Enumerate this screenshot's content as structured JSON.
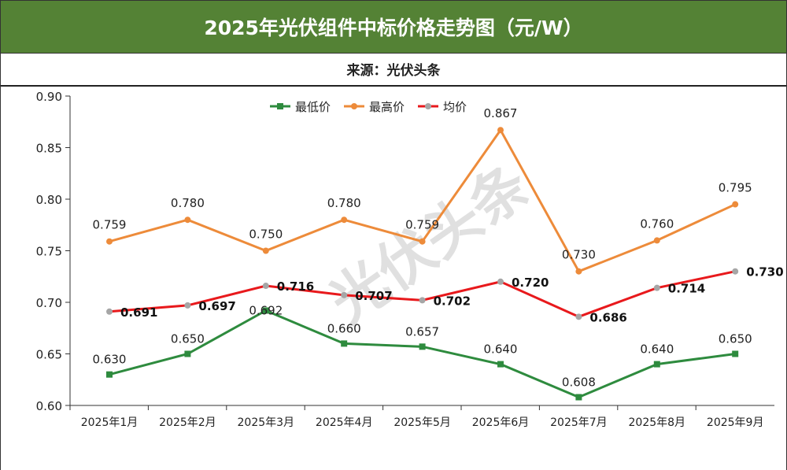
{
  "header": {
    "title": "2025年光伏组件中标价格走势图（元/W）",
    "source": "来源：光伏头条"
  },
  "watermark": "光伏头条",
  "chart_data": {
    "type": "line",
    "title": "2025年光伏组件中标价格走势图（元/W）",
    "categories": [
      "2025年1月",
      "2025年2月",
      "2025年3月",
      "2025年4月",
      "2025年5月",
      "2025年6月",
      "2025年7月",
      "2025年8月",
      "2025年9月"
    ],
    "ylim": [
      0.6,
      0.9
    ],
    "yticks": [
      "0.60",
      "0.65",
      "0.70",
      "0.75",
      "0.80",
      "0.85",
      "0.90"
    ],
    "legend_position": "top-center",
    "series": [
      {
        "name": "最低价",
        "color": "#2e8b3e",
        "marker": "square",
        "labels_bold": false,
        "values": [
          0.63,
          0.65,
          0.692,
          0.66,
          0.657,
          0.64,
          0.608,
          0.64,
          0.65
        ]
      },
      {
        "name": "最高价",
        "color": "#ed8b3a",
        "marker": "circle",
        "labels_bold": false,
        "values": [
          0.759,
          0.78,
          0.75,
          0.78,
          0.759,
          0.867,
          0.73,
          0.76,
          0.795
        ]
      },
      {
        "name": "均价",
        "color": "#e8191c",
        "markerColor": "#a6a6a6",
        "marker": "circle",
        "labels_bold": true,
        "values": [
          0.691,
          0.697,
          0.716,
          0.707,
          0.702,
          0.72,
          0.686,
          0.714,
          0.73
        ]
      }
    ]
  }
}
